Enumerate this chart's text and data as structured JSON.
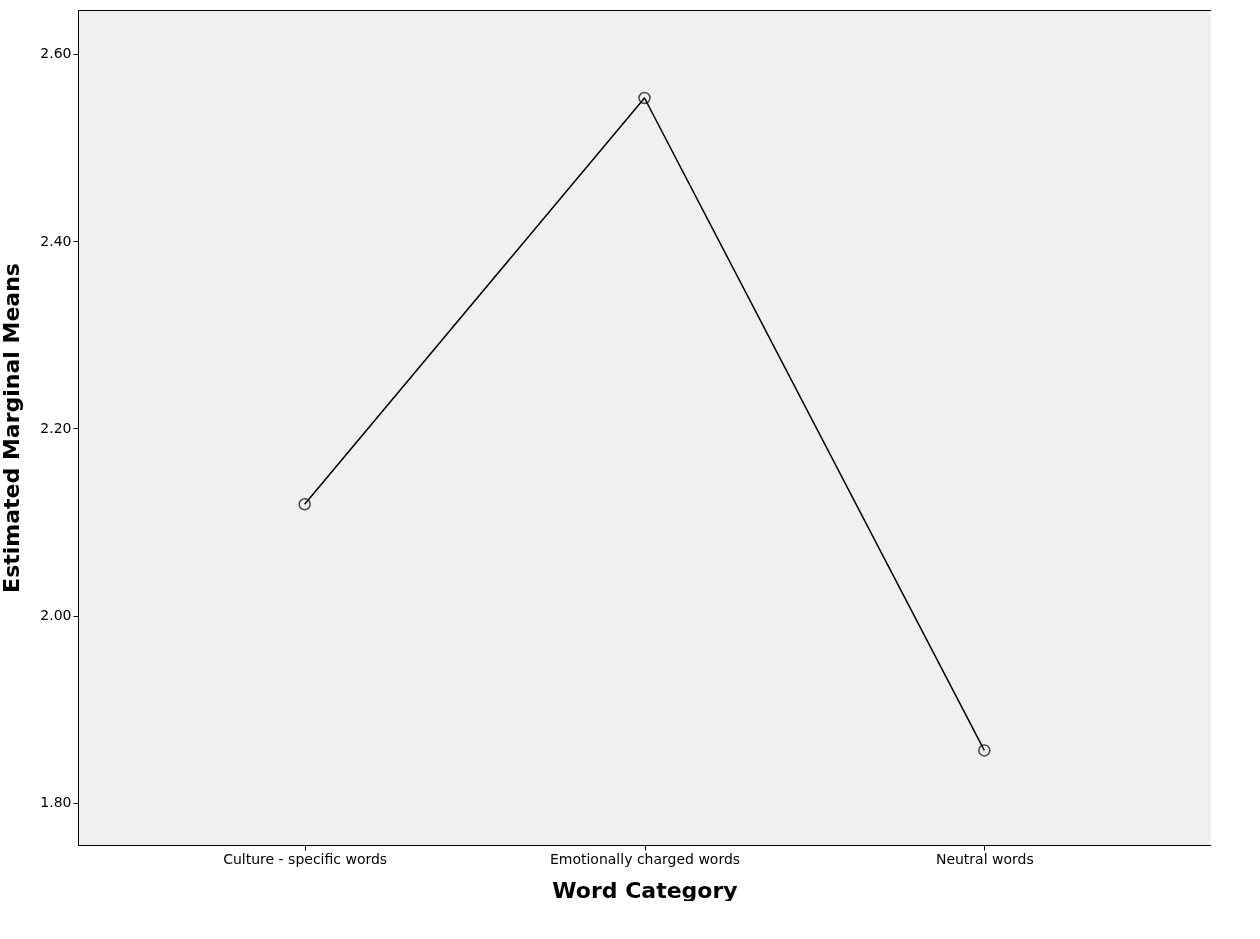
{
  "chart_data": {
    "type": "line",
    "xlabel": "Word Category",
    "ylabel": "Estimated Marginal Means",
    "categories": [
      "Culture - specific words",
      "Emotionally charged words",
      "Neutral words"
    ],
    "series": [
      {
        "color": "#000000",
        "values": [
          2.119,
          2.553,
          1.856
        ]
      }
    ],
    "ylim": [
      1.755,
      2.647
    ],
    "yticks": [
      {
        "value": 1.8,
        "label": "1.80"
      },
      {
        "value": 2.0,
        "label": "2.00"
      },
      {
        "value": 2.2,
        "label": "2.20"
      },
      {
        "value": 2.4,
        "label": "2.40"
      },
      {
        "value": 2.6,
        "label": "2.60"
      }
    ],
    "grid": false,
    "marker": "circle",
    "line_style": "solid"
  }
}
